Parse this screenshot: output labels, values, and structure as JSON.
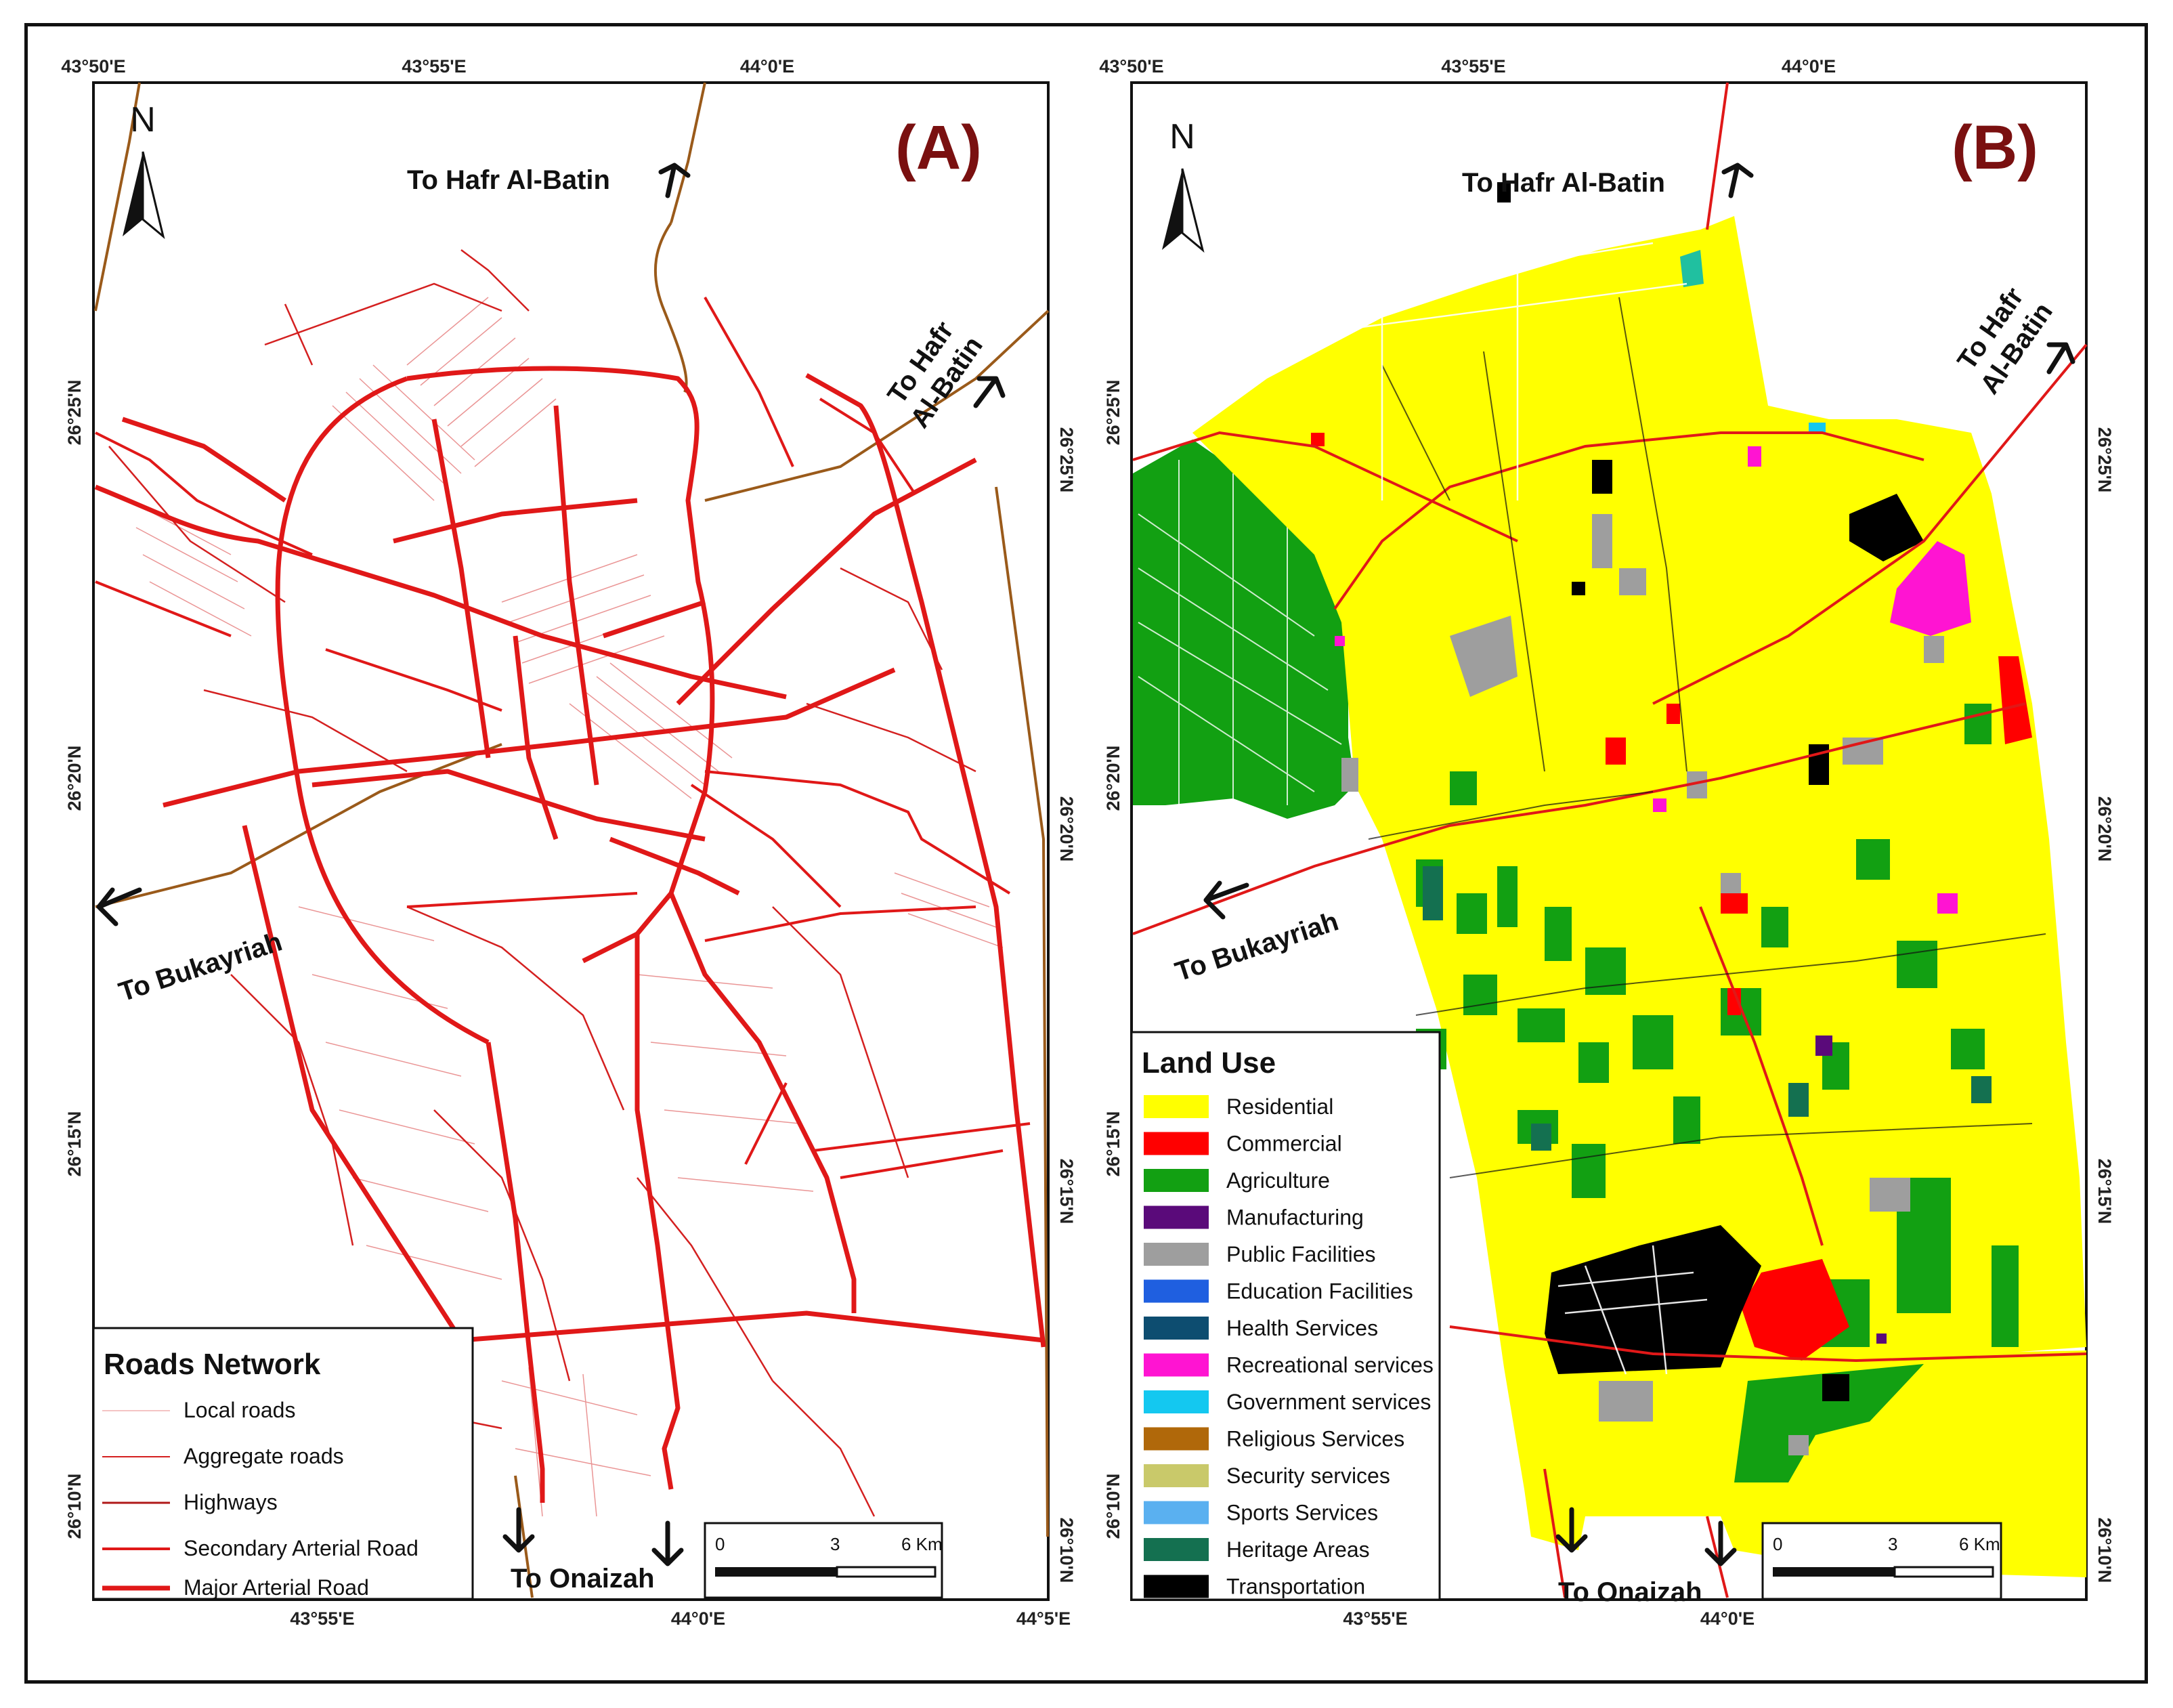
{
  "panelA": {
    "label": "(A)",
    "north": "N",
    "coords": {
      "top": [
        "43°50'E",
        "43°55'E",
        "44°0'E"
      ],
      "bottom": [
        "43°55'E",
        "44°0'E",
        "44°5'E"
      ],
      "left": [
        "26°25'N",
        "26°20'N",
        "26°15'N",
        "26°10'N"
      ],
      "right": [
        "26°25'N",
        "26°20'N",
        "26°15'N",
        "26°10'N"
      ]
    },
    "destinations": {
      "north": "To Hafr Al-Batin",
      "northeast_line1": "To Hafr",
      "northeast_line2": "Al-Batin",
      "west": "To Bukayriah",
      "south": "To Onaizah"
    },
    "legend": {
      "title": "Roads Network",
      "items": [
        {
          "label": "Local roads",
          "color": "#e88a8a"
        },
        {
          "label": "Aggregate roads",
          "color": "#d42020"
        },
        {
          "label": "Highways",
          "color": "#b01818"
        },
        {
          "label": "Secondary Arterial Road",
          "color": "#e01818"
        },
        {
          "label": "Major Arterial Road",
          "color": "#e01818"
        }
      ]
    },
    "scale": {
      "ticks": [
        "0",
        "3",
        "6 Km"
      ]
    }
  },
  "panelB": {
    "label": "(B)",
    "north": "N",
    "coords": {
      "top": [
        "43°50'E",
        "43°55'E",
        "44°0'E"
      ],
      "bottom": [
        "43°55'E",
        "44°0'E"
      ],
      "left": [
        "26°25'N",
        "26°20'N",
        "26°15'N",
        "26°10'N"
      ],
      "right": [
        "26°25'N",
        "26°20'N",
        "26°15'N",
        "26°10'N"
      ]
    },
    "destinations": {
      "north": "To Hafr Al-Batin",
      "northeast_line1": "To Hafr",
      "northeast_line2": "Al-Batin",
      "west": "To Bukayriah",
      "south": "To Onaizah"
    },
    "legend": {
      "title": "Land Use",
      "items": [
        {
          "label": "Residential",
          "color": "#ffff00"
        },
        {
          "label": "Commercial",
          "color": "#ff0000"
        },
        {
          "label": "Agriculture",
          "color": "#12a012"
        },
        {
          "label": "Manufacturing",
          "color": "#5a0a7a"
        },
        {
          "label": "Public Facilities",
          "color": "#9e9e9e"
        },
        {
          "label": "Education Facilities",
          "color": "#1f5fe0"
        },
        {
          "label": "Health Services",
          "color": "#0d4d70"
        },
        {
          "label": "Recreational services",
          "color": "#ff14d2"
        },
        {
          "label": "Government services",
          "color": "#14c8f0"
        },
        {
          "label": "Religious Services",
          "color": "#b0680a"
        },
        {
          "label": "Security services",
          "color": "#c9c96a"
        },
        {
          "label": "Sports Services",
          "color": "#5ab0f0"
        },
        {
          "label": "Heritage Areas",
          "color": "#147050"
        },
        {
          "label": "Transportation",
          "color": "#000000"
        }
      ]
    },
    "scale": {
      "ticks": [
        "0",
        "3",
        "6 Km"
      ]
    }
  },
  "colors": {
    "road": "#e01818",
    "highway": "#9a5a1a",
    "residential": "#ffff00",
    "agriculture": "#12a012"
  }
}
